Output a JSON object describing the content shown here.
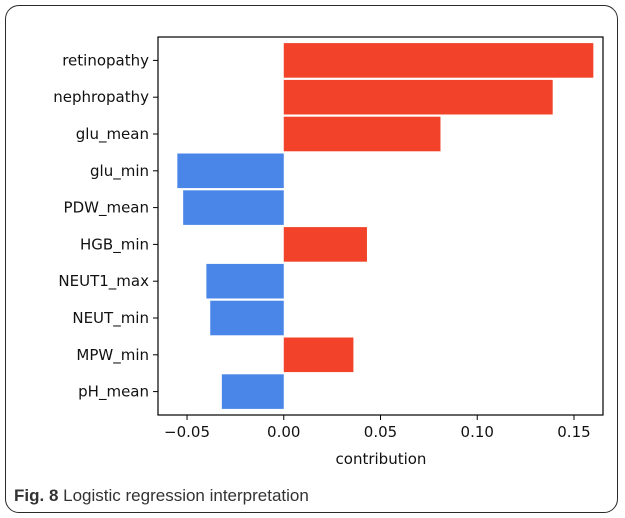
{
  "chart_data": {
    "type": "bar",
    "orientation": "horizontal",
    "categories": [
      "retinopathy",
      "nephropathy",
      "glu_mean",
      "glu_min",
      "PDW_mean",
      "HGB_min",
      "NEUT1_max",
      "NEUT_min",
      "MPW_min",
      "pH_mean"
    ],
    "values": [
      0.16,
      0.139,
      0.081,
      -0.055,
      -0.052,
      0.043,
      -0.04,
      -0.038,
      0.036,
      -0.032
    ],
    "xlabel": "contribution",
    "ylabel": "",
    "xlim": [
      -0.065,
      0.165
    ],
    "xticks": [
      -0.05,
      0.0,
      0.05,
      0.1,
      0.15
    ],
    "xtick_labels": [
      "−0.05",
      "0.00",
      "0.05",
      "0.10",
      "0.15"
    ],
    "grid": false,
    "colors": {
      "positive": "#f2432a",
      "negative": "#4a86e8"
    }
  },
  "caption": {
    "label": "Fig. 8",
    "text": "Logistic regression interpretation"
  }
}
